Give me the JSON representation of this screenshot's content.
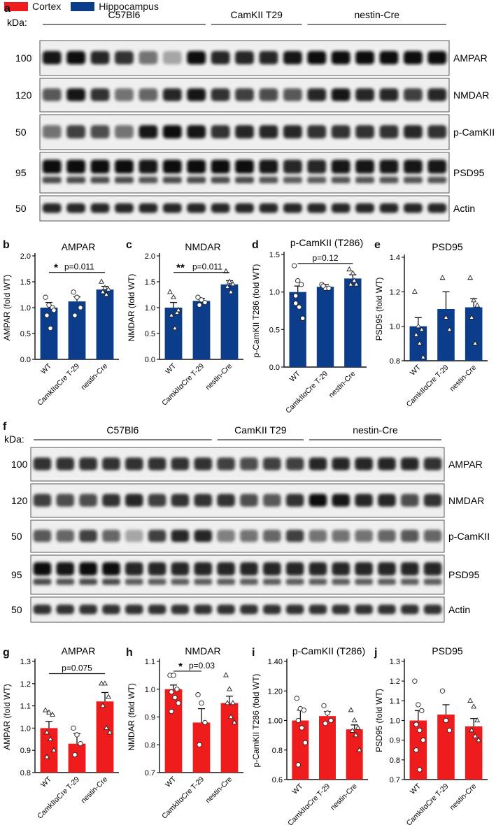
{
  "legend": {
    "items": [
      {
        "label": "Cortex",
        "color": "#ee1c1c"
      },
      {
        "label": "Hippocampus",
        "color": "#0b3d8a"
      }
    ]
  },
  "colors": {
    "cortex": "#ee1c1c",
    "hippocampus": "#0b3d8a"
  },
  "blots": [
    {
      "panel": "a",
      "kda_label": "kDa:",
      "groups": [
        {
          "name": "C57Bl6",
          "lanes": 7
        },
        {
          "name": "CamKII T29",
          "lanes": 4
        },
        {
          "name": "nestin-Cre",
          "lanes": 6
        }
      ],
      "rows": [
        {
          "label": "AMPAR",
          "kda": "100",
          "intensity": [
            0.9,
            0.95,
            0.85,
            0.8,
            0.55,
            0.35,
            0.95,
            0.85,
            0.85,
            0.85,
            0.9,
            0.95,
            0.95,
            0.95,
            0.95,
            0.95,
            0.95
          ],
          "double": false
        },
        {
          "label": "NMDAR",
          "kda": "120",
          "intensity": [
            0.65,
            0.9,
            0.8,
            0.55,
            0.6,
            0.85,
            0.9,
            0.8,
            0.75,
            0.7,
            0.65,
            0.85,
            0.9,
            0.85,
            0.85,
            0.75,
            0.85
          ],
          "double": false
        },
        {
          "label": "p-CamKII",
          "kda": "50",
          "intensity": [
            0.55,
            0.75,
            0.7,
            0.55,
            0.9,
            0.95,
            0.9,
            0.8,
            0.85,
            0.85,
            0.85,
            0.8,
            0.8,
            0.8,
            0.8,
            0.85,
            0.8
          ],
          "double": false
        },
        {
          "label": "PSD95",
          "kda": "95",
          "intensity": [
            0.95,
            0.95,
            0.95,
            0.95,
            0.9,
            0.95,
            0.95,
            0.95,
            0.95,
            0.9,
            0.85,
            0.85,
            0.9,
            0.9,
            0.9,
            0.9,
            0.9
          ],
          "double": true
        },
        {
          "label": "Actin",
          "kda": "50",
          "intensity": [
            0.85,
            0.85,
            0.85,
            0.85,
            0.85,
            0.85,
            0.85,
            0.85,
            0.85,
            0.85,
            0.85,
            0.85,
            0.85,
            0.85,
            0.85,
            0.85,
            0.85
          ],
          "double": false
        }
      ]
    },
    {
      "panel": "f",
      "kda_label": "kDa:",
      "groups": [
        {
          "name": "C57Bl6",
          "lanes": 8
        },
        {
          "name": "CamKII T29",
          "lanes": 4
        },
        {
          "name": "nestin-Cre",
          "lanes": 6
        }
      ],
      "rows": [
        {
          "label": "AMPAR",
          "kda": "100",
          "intensity": [
            0.8,
            0.8,
            0.8,
            0.8,
            0.8,
            0.8,
            0.8,
            0.8,
            0.75,
            0.7,
            0.75,
            0.75,
            0.85,
            0.85,
            0.85,
            0.85,
            0.85,
            0.8
          ],
          "double": false
        },
        {
          "label": "NMDAR",
          "kda": "120",
          "intensity": [
            0.75,
            0.7,
            0.7,
            0.8,
            0.85,
            0.75,
            0.8,
            0.8,
            0.8,
            0.7,
            0.65,
            0.8,
            0.95,
            0.9,
            0.85,
            0.85,
            0.7,
            0.8
          ],
          "double": false
        },
        {
          "label": "p-CamKII",
          "kda": "50",
          "intensity": [
            0.65,
            0.6,
            0.75,
            0.6,
            0.35,
            0.75,
            0.85,
            0.85,
            0.5,
            0.55,
            0.6,
            0.75,
            0.55,
            0.55,
            0.55,
            0.6,
            0.65,
            0.6
          ],
          "double": false
        },
        {
          "label": "PSD95",
          "kda": "95",
          "intensity": [
            0.95,
            0.9,
            0.95,
            0.95,
            0.85,
            0.85,
            0.85,
            0.85,
            0.85,
            0.85,
            0.85,
            0.85,
            0.85,
            0.85,
            0.85,
            0.85,
            0.85,
            0.85
          ],
          "double": true
        },
        {
          "label": "Actin",
          "kda": "50",
          "intensity": [
            0.8,
            0.8,
            0.8,
            0.8,
            0.8,
            0.8,
            0.8,
            0.8,
            0.8,
            0.8,
            0.8,
            0.8,
            0.8,
            0.8,
            0.8,
            0.8,
            0.8,
            0.8
          ],
          "double": false
        }
      ]
    }
  ],
  "chart_data": [
    {
      "panel": "b",
      "type": "bar",
      "title": "AMPAR",
      "ylabel": "AMPAR (fold WT)",
      "categories": [
        "WT",
        "CamkIIαCre T-29",
        "nestin-Cre"
      ],
      "values": [
        1.0,
        1.12,
        1.35
      ],
      "errors": [
        0.1,
        0.09,
        0.06
      ],
      "points": [
        [
          1.2,
          1.05,
          1.0,
          0.85,
          0.6,
          0.95
        ],
        [
          1.3,
          1.2,
          1.0,
          0.85
        ],
        [
          1.5,
          1.38,
          1.35,
          1.3,
          1.25
        ]
      ],
      "markers": [
        "circle",
        "circle",
        "triangle"
      ],
      "ylim": [
        0.0,
        2.0
      ],
      "yticks": [
        "0.0",
        "0.5",
        "1.0",
        "1.5",
        "2.0"
      ],
      "color": "#0b3d8a",
      "annotation": {
        "stars": "*",
        "text": "p=0.011",
        "from": 0,
        "to": 2,
        "y": 1.68
      }
    },
    {
      "panel": "c",
      "type": "bar",
      "title": "NMDAR",
      "ylabel": "NMDAR (fold WT)",
      "categories": [
        "WT",
        "CamkIIαCre T-29",
        "nestin-Cre"
      ],
      "values": [
        1.0,
        1.13,
        1.45
      ],
      "errors": [
        0.1,
        0.05,
        0.07
      ],
      "points": [
        [
          1.3,
          1.2,
          0.9,
          0.85,
          0.6,
          0.95
        ],
        [
          1.2,
          1.15,
          1.1,
          1.05
        ],
        [
          1.7,
          1.5,
          1.45,
          1.4,
          1.3
        ]
      ],
      "markers": [
        "triangle",
        "circle",
        "triangle"
      ],
      "ylim": [
        0.0,
        2.0
      ],
      "yticks": [
        "0.0",
        "0.5",
        "1.0",
        "1.5",
        "2.0"
      ],
      "color": "#0b3d8a",
      "annotation": {
        "stars": "**",
        "text": "p=0.011",
        "from": 0,
        "to": 2,
        "y": 1.68
      }
    },
    {
      "panel": "d",
      "type": "bar",
      "title": "p-CamKII (T286)",
      "ylabel": "p-CamKII T286 (fold WT)",
      "categories": [
        "WT",
        "CamkIIαCre T-29",
        "nestin-Cre"
      ],
      "values": [
        1.0,
        1.07,
        1.18
      ],
      "errors": [
        0.08,
        0.03,
        0.05
      ],
      "points": [
        [
          1.35,
          1.15,
          1.1,
          0.85,
          0.8,
          0.65,
          0.95
        ],
        [
          1.1,
          1.05,
          1.05,
          1.08
        ],
        [
          1.3,
          1.25,
          1.1,
          1.1,
          1.15
        ]
      ],
      "markers": [
        "circle",
        "circle",
        "triangle"
      ],
      "ylim": [
        0.0,
        1.5
      ],
      "yticks": [
        "0.0",
        "0.5",
        "1.0",
        "1.5"
      ],
      "color": "#0b3d8a",
      "annotation": {
        "stars": "",
        "text": "p=0.12",
        "from": 0,
        "to": 2,
        "y": 1.38
      }
    },
    {
      "panel": "e",
      "type": "bar",
      "title": "PSD95",
      "ylabel": "PSD95 (fold WT)",
      "categories": [
        "WT",
        "CamkIIαCre T-29",
        "nestin-Cre"
      ],
      "values": [
        1.0,
        1.1,
        1.11
      ],
      "errors": [
        0.05,
        0.1,
        0.05
      ],
      "points": [
        [
          1.2,
          1.0,
          0.98,
          0.95,
          0.9,
          0.82
        ],
        [
          1.28,
          1.05,
          0.98
        ],
        [
          1.28,
          1.15,
          1.12,
          1.05,
          0.9
        ]
      ],
      "markers": [
        "triangle",
        "triangle",
        "triangle"
      ],
      "ylim": [
        0.8,
        1.4
      ],
      "yticks": [
        "0.8",
        "1.0",
        "1.2",
        "1.4"
      ],
      "color": "#0b3d8a",
      "annotation": null
    },
    {
      "panel": "g",
      "type": "bar",
      "title": "AMPAR",
      "ylabel": "AMPAR (fold WT)",
      "categories": [
        "WT",
        "CamkIIαCre T-29",
        "nestin-Cre"
      ],
      "values": [
        1.0,
        0.93,
        1.12
      ],
      "errors": [
        0.03,
        0.045,
        0.04
      ],
      "points": [
        [
          1.08,
          1.07,
          1.06,
          0.98,
          0.95,
          0.9,
          0.87
        ],
        [
          1.0,
          0.97,
          0.93,
          0.88
        ],
        [
          1.2,
          1.2,
          1.14,
          1.1,
          1.0,
          0.98
        ]
      ],
      "markers": [
        "triangle",
        "circle",
        "triangle"
      ],
      "ylim": [
        0.8,
        1.3
      ],
      "yticks": [
        "0.8",
        "0.9",
        "1.0",
        "1.1",
        "1.2",
        "1.3"
      ],
      "color": "#ee1c1c",
      "annotation": {
        "stars": "",
        "text": "p=0.075",
        "from": 0,
        "to": 2,
        "y": 1.245
      }
    },
    {
      "panel": "h",
      "type": "bar",
      "title": "NMDAR",
      "ylabel": "NMDAR (fold WT)",
      "categories": [
        "WT",
        "CamkIIαCre T-29",
        "nestin-Cre"
      ],
      "values": [
        1.0,
        0.88,
        0.95
      ],
      "errors": [
        0.015,
        0.05,
        0.025
      ],
      "points": [
        [
          1.05,
          1.05,
          1.0,
          0.99,
          0.97,
          0.95,
          0.92
        ],
        [
          0.98,
          0.95,
          0.88,
          0.8
        ],
        [
          1.05,
          1.0,
          0.95,
          0.95,
          0.9,
          0.88
        ]
      ],
      "markers": [
        "circle",
        "circle",
        "triangle"
      ],
      "ylim": [
        0.7,
        1.1
      ],
      "yticks": [
        "0.7",
        "0.8",
        "0.9",
        "1.0",
        "1.1"
      ],
      "color": "#ee1c1c",
      "annotation": {
        "stars": "*",
        "text": "p=0.03",
        "from": 0,
        "to": 1,
        "y": 1.065
      }
    },
    {
      "panel": "i",
      "type": "bar",
      "title": "p-CamKII (T286)",
      "ylabel": "p-CamKII T286 (fold WT)",
      "categories": [
        "WT",
        "CamkIIαCre T-29",
        "nestin-Cre"
      ],
      "values": [
        1.0,
        1.03,
        0.94
      ],
      "errors": [
        0.07,
        0.03,
        0.03
      ],
      "points": [
        [
          1.15,
          1.08,
          1.07,
          1.0,
          0.95,
          0.85,
          0.7
        ],
        [
          1.1,
          1.05,
          1.0,
          0.98
        ],
        [
          1.07,
          1.0,
          0.95,
          0.93,
          0.9,
          0.8
        ]
      ],
      "markers": [
        "circle",
        "circle",
        "triangle"
      ],
      "ylim": [
        0.6,
        1.4
      ],
      "yticks": [
        "0.6",
        "0.8",
        "1.00",
        "1.20",
        "1.40"
      ],
      "color": "#ee1c1c",
      "annotation": null
    },
    {
      "panel": "j",
      "type": "bar",
      "title": "PSD95",
      "ylabel": "PSD95 (fold WT)",
      "categories": [
        "WT",
        "CamkIIαCre T-29",
        "nestin-Cre"
      ],
      "values": [
        1.0,
        1.03,
        0.97
      ],
      "errors": [
        0.05,
        0.05,
        0.04
      ],
      "points": [
        [
          1.2,
          1.08,
          1.05,
          0.98,
          0.95,
          0.9,
          0.85,
          0.75
        ],
        [
          1.15,
          1.0,
          0.95
        ],
        [
          1.1,
          1.07,
          1.0,
          0.95,
          0.92,
          0.9
        ]
      ],
      "markers": [
        "circle",
        "circle",
        "triangle"
      ],
      "ylim": [
        0.7,
        1.3
      ],
      "yticks": [
        "0.7",
        "0.8",
        "0.9",
        "1.0",
        "1.1",
        "1.2",
        "1.3"
      ],
      "color": "#ee1c1c",
      "annotation": null
    }
  ]
}
